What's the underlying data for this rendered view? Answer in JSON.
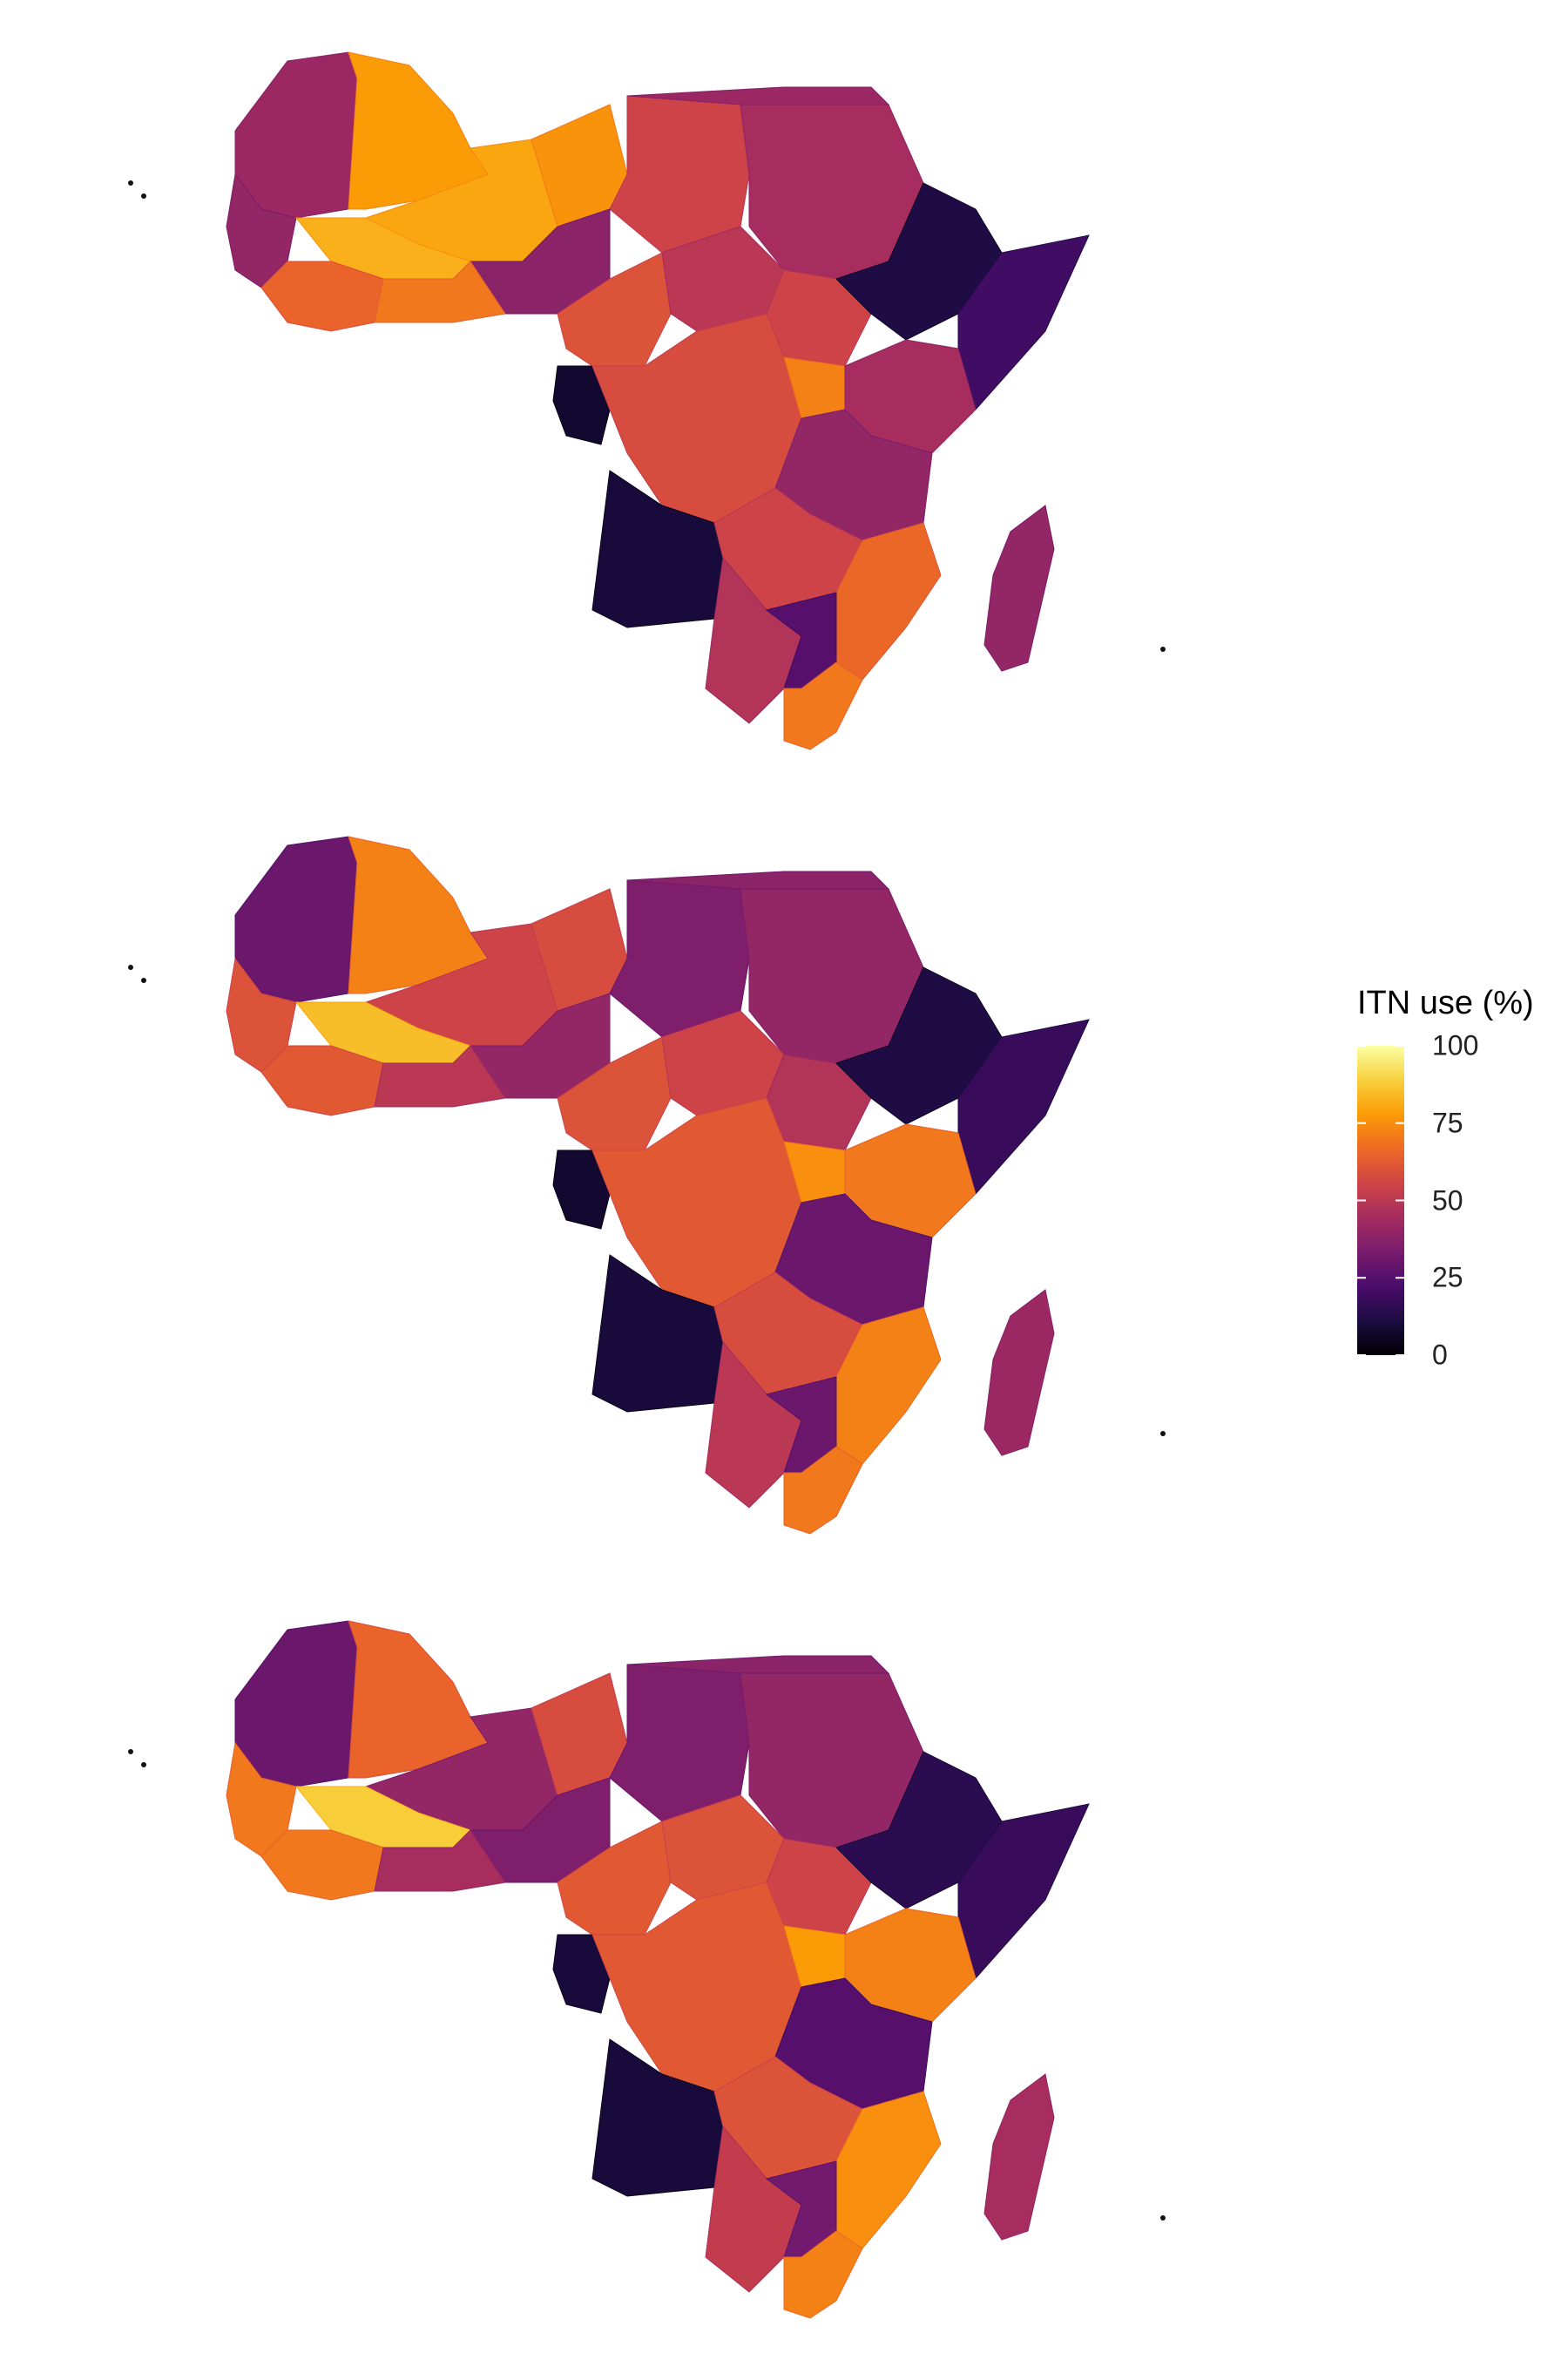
{
  "legend": {
    "title": "ITN use (%)",
    "ticks": [
      "100",
      "75",
      "50",
      "25",
      "0"
    ],
    "tick_values": [
      100,
      75,
      50,
      25,
      0
    ],
    "range": [
      0,
      100
    ],
    "colormap": [
      "#000004",
      "#1b0c41",
      "#4a0c6b",
      "#781c6d",
      "#a52c60",
      "#cf4446",
      "#ed6925",
      "#fb9b06",
      "#f7d13d",
      "#fcffa4"
    ]
  },
  "panels": [
    {
      "resolution": "country",
      "regions": [
        {
          "name": "west-sahara",
          "value": 42
        },
        {
          "name": "mauritania",
          "value": 78
        },
        {
          "name": "mali",
          "value": 80
        },
        {
          "name": "niger",
          "value": 76
        },
        {
          "name": "chad",
          "value": 55
        },
        {
          "name": "sudan",
          "value": 45
        },
        {
          "name": "egypt-libya-north",
          "value": 42
        },
        {
          "name": "senegal-guinea",
          "value": 40
        },
        {
          "name": "burkina-faso",
          "value": 82
        },
        {
          "name": "nigeria",
          "value": 38
        },
        {
          "name": "west-coast",
          "value": 65
        },
        {
          "name": "ghana-togo",
          "value": 70
        },
        {
          "name": "cameroon",
          "value": 60
        },
        {
          "name": "car",
          "value": 50
        },
        {
          "name": "south-sudan",
          "value": 55
        },
        {
          "name": "ethiopia",
          "value": 12
        },
        {
          "name": "somalia",
          "value": 20
        },
        {
          "name": "gabon",
          "value": 8
        },
        {
          "name": "drc",
          "value": 58
        },
        {
          "name": "uganda",
          "value": 72
        },
        {
          "name": "kenya",
          "value": 45
        },
        {
          "name": "tanzania",
          "value": 40
        },
        {
          "name": "angola",
          "value": 10
        },
        {
          "name": "zambia",
          "value": 55
        },
        {
          "name": "mozambique",
          "value": 66
        },
        {
          "name": "namibia-botswana",
          "value": 48
        },
        {
          "name": "zimbabwe",
          "value": 25
        },
        {
          "name": "south-africa-east",
          "value": 70
        },
        {
          "name": "madagascar",
          "value": 40
        }
      ]
    },
    {
      "resolution": "province",
      "regions": [
        {
          "name": "west-sahara",
          "value": 30
        },
        {
          "name": "mauritania",
          "value": 72
        },
        {
          "name": "mali",
          "value": 55
        },
        {
          "name": "niger",
          "value": 58
        },
        {
          "name": "chad",
          "value": 35
        },
        {
          "name": "sudan",
          "value": 40
        },
        {
          "name": "egypt-libya-north",
          "value": 38
        },
        {
          "name": "senegal-guinea",
          "value": 60
        },
        {
          "name": "burkina-faso",
          "value": 85
        },
        {
          "name": "nigeria",
          "value": 40
        },
        {
          "name": "west-coast",
          "value": 62
        },
        {
          "name": "ghana-togo",
          "value": 50
        },
        {
          "name": "cameroon",
          "value": 60
        },
        {
          "name": "car",
          "value": 55
        },
        {
          "name": "south-sudan",
          "value": 48
        },
        {
          "name": "ethiopia",
          "value": 12
        },
        {
          "name": "somalia",
          "value": 18
        },
        {
          "name": "gabon",
          "value": 8
        },
        {
          "name": "drc",
          "value": 62
        },
        {
          "name": "uganda",
          "value": 75
        },
        {
          "name": "kenya",
          "value": 70
        },
        {
          "name": "tanzania",
          "value": 30
        },
        {
          "name": "angola",
          "value": 10
        },
        {
          "name": "zambia",
          "value": 58
        },
        {
          "name": "mozambique",
          "value": 72
        },
        {
          "name": "namibia-botswana",
          "value": 50
        },
        {
          "name": "zimbabwe",
          "value": 30
        },
        {
          "name": "south-africa-east",
          "value": 70
        },
        {
          "name": "madagascar",
          "value": 42
        }
      ]
    },
    {
      "resolution": "pixel",
      "regions": [
        {
          "name": "west-sahara",
          "value": 30
        },
        {
          "name": "mauritania",
          "value": 65
        },
        {
          "name": "mali",
          "value": 40
        },
        {
          "name": "niger",
          "value": 58
        },
        {
          "name": "chad",
          "value": 35
        },
        {
          "name": "sudan",
          "value": 40
        },
        {
          "name": "egypt-libya-north",
          "value": 38
        },
        {
          "name": "senegal-guinea",
          "value": 70
        },
        {
          "name": "burkina-faso",
          "value": 88
        },
        {
          "name": "nigeria",
          "value": 35
        },
        {
          "name": "west-coast",
          "value": 70
        },
        {
          "name": "ghana-togo",
          "value": 45
        },
        {
          "name": "cameroon",
          "value": 62
        },
        {
          "name": "car",
          "value": 60
        },
        {
          "name": "south-sudan",
          "value": 55
        },
        {
          "name": "ethiopia",
          "value": 15
        },
        {
          "name": "somalia",
          "value": 18
        },
        {
          "name": "gabon",
          "value": 10
        },
        {
          "name": "drc",
          "value": 62
        },
        {
          "name": "uganda",
          "value": 78
        },
        {
          "name": "kenya",
          "value": 72
        },
        {
          "name": "tanzania",
          "value": 25
        },
        {
          "name": "angola",
          "value": 10
        },
        {
          "name": "zambia",
          "value": 60
        },
        {
          "name": "mozambique",
          "value": 75
        },
        {
          "name": "namibia-botswana",
          "value": 52
        },
        {
          "name": "zimbabwe",
          "value": 32
        },
        {
          "name": "south-africa-east",
          "value": 72
        },
        {
          "name": "madagascar",
          "value": 45
        }
      ]
    }
  ]
}
